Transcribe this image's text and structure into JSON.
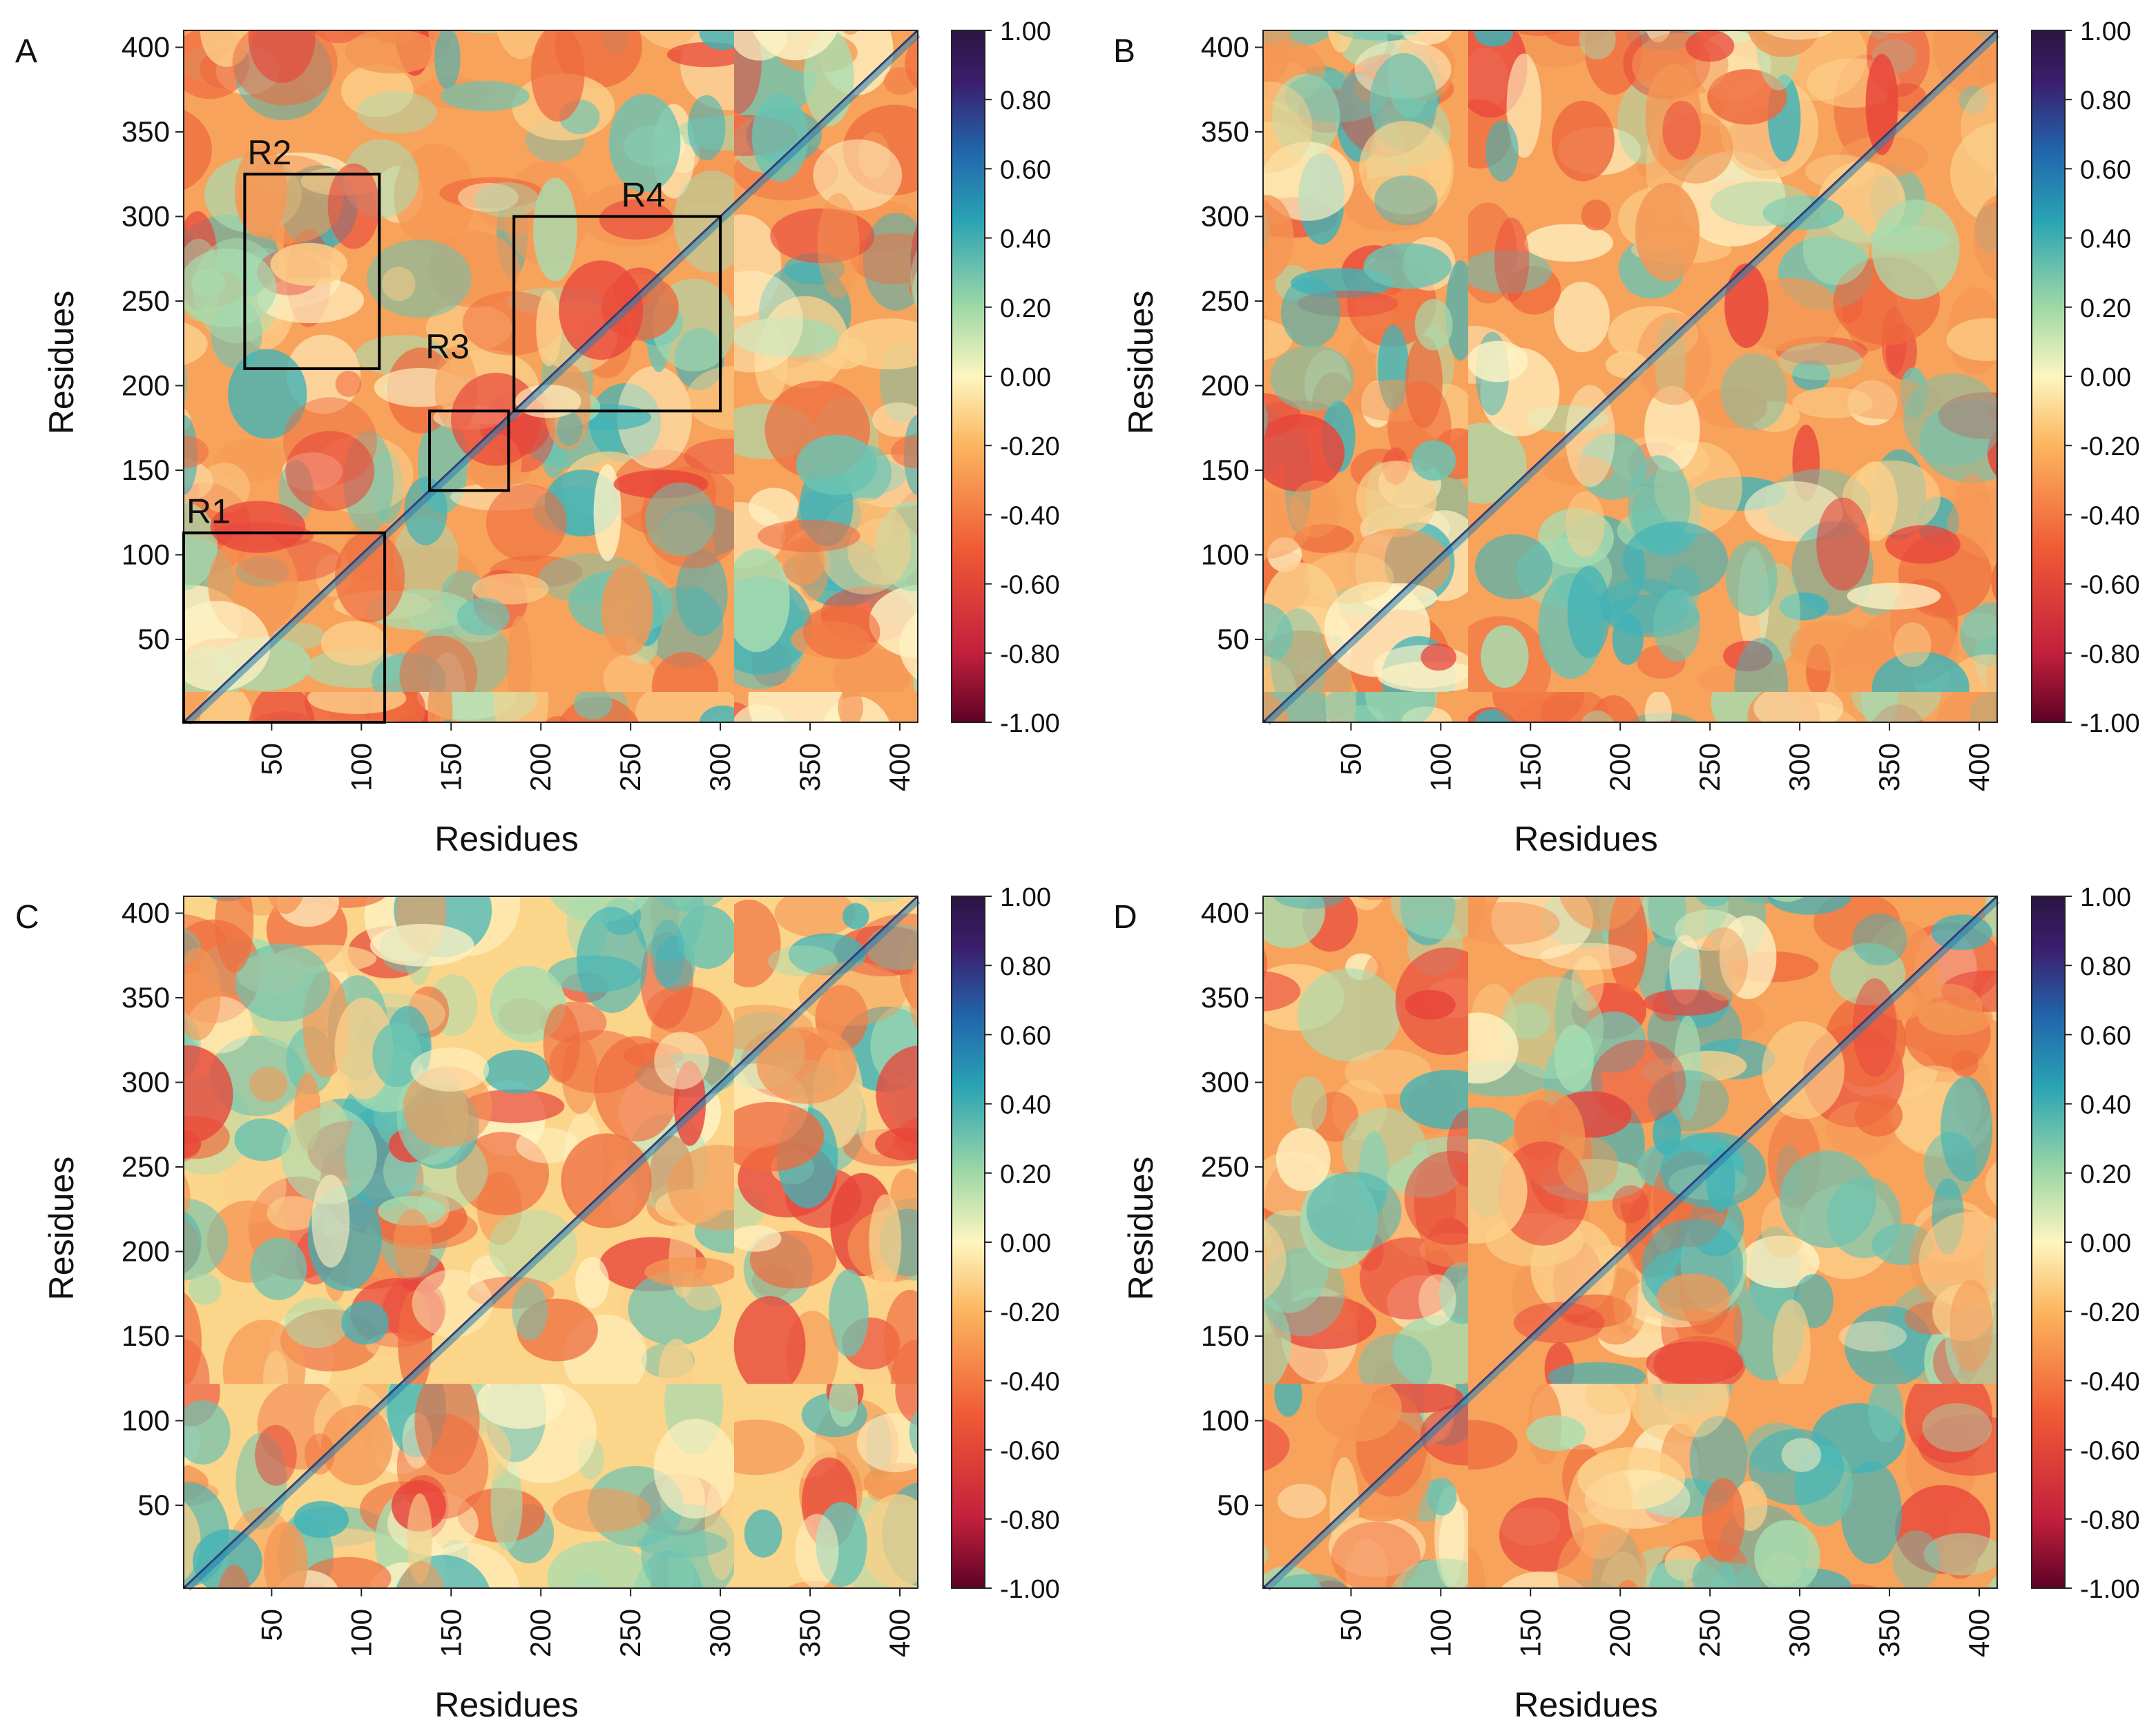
{
  "figure": {
    "colormap": [
      "#5e0225",
      "#c2203c",
      "#ef5a36",
      "#fcb55e",
      "#fdf6c0",
      "#9fd8a6",
      "#2aa3b4",
      "#2166ac",
      "#3b1e6d",
      "#2a1541"
    ],
    "colormap_stops": [
      -1.0,
      -0.8,
      -0.5,
      -0.2,
      0.0,
      0.2,
      0.45,
      0.65,
      0.85,
      1.0
    ]
  },
  "chart_data": [
    {
      "panel": "A",
      "type": "heatmap",
      "title": "",
      "xlabel": "Residues",
      "ylabel": "Residues",
      "xlim": [
        1,
        410
      ],
      "ylim": [
        1,
        410
      ],
      "x_ticks": [
        "50",
        "100",
        "150",
        "200",
        "250",
        "300",
        "350",
        "400"
      ],
      "y_ticks": [
        "50",
        "100",
        "150",
        "200",
        "250",
        "300",
        "350",
        "400"
      ],
      "colorbar": {
        "range": [
          -1.0,
          1.0
        ],
        "ticks": [
          "1.00",
          "0.80",
          "0.60",
          "0.40",
          "0.20",
          "0.00",
          "-0.20",
          "-0.40",
          "-0.60",
          "-0.80",
          "-1.00"
        ]
      },
      "diagonal_value": 1.0,
      "regions": [
        {
          "label": "R1",
          "x_range": [
            1,
            113
          ],
          "y_range": [
            1,
            113
          ]
        },
        {
          "label": "R2",
          "x_range": [
            35,
            110
          ],
          "y_range": [
            210,
            325
          ]
        },
        {
          "label": "R3",
          "x_range": [
            138,
            182
          ],
          "y_range": [
            138,
            185
          ]
        },
        {
          "label": "R4",
          "x_range": [
            185,
            300
          ],
          "y_range": [
            185,
            300
          ]
        }
      ]
    },
    {
      "panel": "B",
      "type": "heatmap",
      "title": "",
      "xlabel": "Residues",
      "ylabel": "Residues",
      "xlim": [
        1,
        410
      ],
      "ylim": [
        1,
        410
      ],
      "x_ticks": [
        "50",
        "100",
        "150",
        "200",
        "250",
        "300",
        "350",
        "400"
      ],
      "y_ticks": [
        "50",
        "100",
        "150",
        "200",
        "250",
        "300",
        "350",
        "400"
      ],
      "colorbar": {
        "range": [
          -1.0,
          1.0
        ],
        "ticks": [
          "1.00",
          "0.80",
          "0.60",
          "0.40",
          "0.20",
          "0.00",
          "-0.20",
          "-0.40",
          "-0.60",
          "-0.80",
          "-1.00"
        ]
      },
      "diagonal_value": 1.0,
      "regions": []
    },
    {
      "panel": "C",
      "type": "heatmap",
      "title": "",
      "xlabel": "Residues",
      "ylabel": "Residues",
      "xlim": [
        1,
        410
      ],
      "ylim": [
        1,
        410
      ],
      "x_ticks": [
        "50",
        "100",
        "150",
        "200",
        "250",
        "300",
        "350",
        "400"
      ],
      "y_ticks": [
        "50",
        "100",
        "150",
        "200",
        "250",
        "300",
        "350",
        "400"
      ],
      "colorbar": {
        "range": [
          -1.0,
          1.0
        ],
        "ticks": [
          "1.00",
          "0.80",
          "0.60",
          "0.40",
          "0.20",
          "0.00",
          "-0.20",
          "-0.40",
          "-0.60",
          "-0.80",
          "-1.00"
        ]
      },
      "diagonal_value": 1.0,
      "regions": []
    },
    {
      "panel": "D",
      "type": "heatmap",
      "title": "",
      "xlabel": "Residues",
      "ylabel": "Residues",
      "xlim": [
        1,
        410
      ],
      "ylim": [
        1,
        410
      ],
      "x_ticks": [
        "50",
        "100",
        "150",
        "200",
        "250",
        "300",
        "350",
        "400"
      ],
      "y_ticks": [
        "50",
        "100",
        "150",
        "200",
        "250",
        "300",
        "350",
        "400"
      ],
      "colorbar": {
        "range": [
          -1.0,
          1.0
        ],
        "ticks": [
          "1.00",
          "0.80",
          "0.60",
          "0.40",
          "0.20",
          "0.00",
          "-0.20",
          "-0.40",
          "-0.60",
          "-0.80",
          "-1.00"
        ]
      },
      "diagonal_value": 1.0,
      "regions": []
    }
  ]
}
